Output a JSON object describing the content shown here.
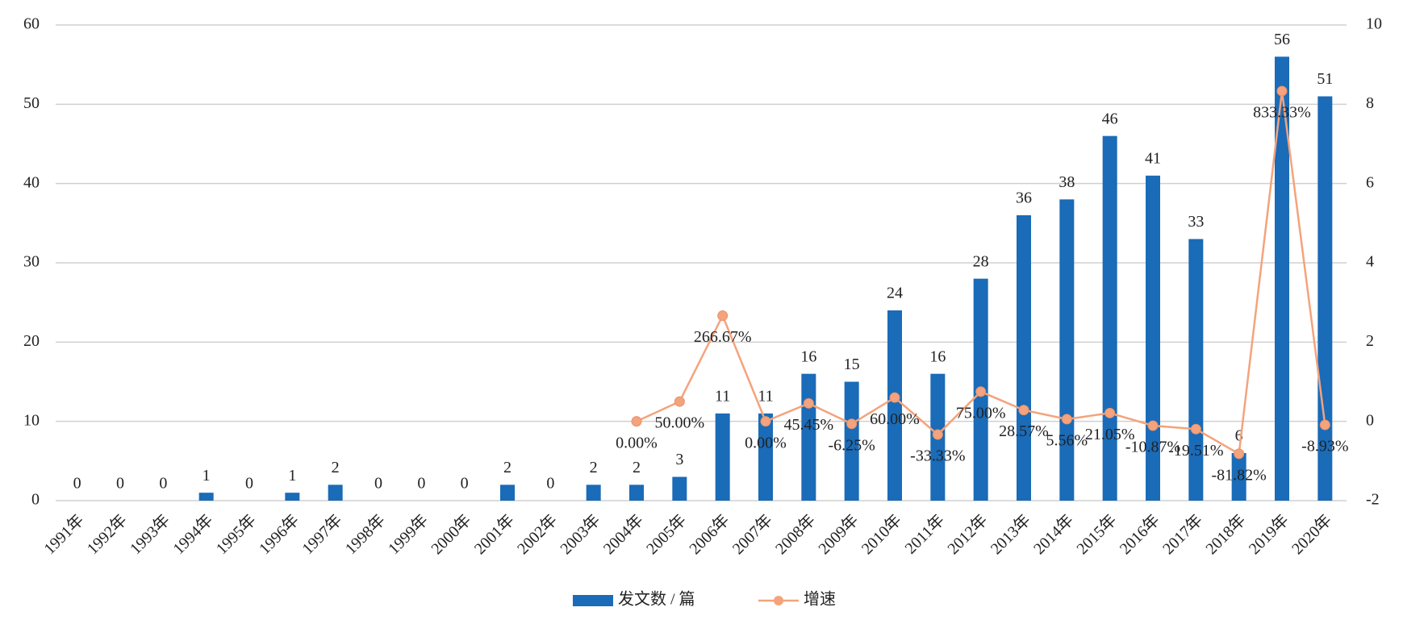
{
  "chart_data": {
    "type": "bar",
    "categories": [
      "1991年",
      "1992年",
      "1993年",
      "1994年",
      "1995年",
      "1996年",
      "1997年",
      "1998年",
      "1999年",
      "2000年",
      "2001年",
      "2002年",
      "2003年",
      "2004年",
      "2005年",
      "2006年",
      "2007年",
      "2008年",
      "2009年",
      "2010年",
      "2011年",
      "2012年",
      "2013年",
      "2014年",
      "2015年",
      "2016年",
      "2017年",
      "2018年",
      "2019年",
      "2020年"
    ],
    "series": [
      {
        "name": "发文数 / 篇",
        "type": "bar",
        "color": "#1a6bb8",
        "values": [
          0,
          0,
          0,
          1,
          0,
          1,
          2,
          0,
          0,
          0,
          2,
          0,
          2,
          2,
          3,
          11,
          11,
          16,
          15,
          24,
          16,
          28,
          36,
          38,
          46,
          41,
          33,
          6,
          56,
          51
        ]
      },
      {
        "name": "增速",
        "type": "line",
        "axis": "y2",
        "color": "#f4a37c",
        "values": [
          null,
          null,
          null,
          null,
          null,
          null,
          null,
          null,
          null,
          null,
          null,
          null,
          null,
          0,
          0.5,
          2.6667,
          0,
          0.4545,
          -0.0625,
          0.6,
          -0.3333,
          0.75,
          0.2857,
          0.0556,
          0.2105,
          -0.1087,
          -0.1951,
          -0.8182,
          8.3333,
          -0.0893
        ],
        "value_labels": [
          null,
          null,
          null,
          null,
          null,
          null,
          null,
          null,
          null,
          null,
          null,
          null,
          null,
          "0.00%",
          "50.00%",
          "266.67%",
          "0.00%",
          "45.45%",
          "-6.25%",
          "60.00%",
          "-33.33%",
          "75.00%",
          "28.57%",
          "5.56%",
          "21.05%",
          "-10.87%",
          "-19.51%",
          "-81.82%",
          "833.33%",
          "-8.93%"
        ]
      }
    ],
    "ylim": [
      0,
      60
    ],
    "yticks": [
      0,
      10,
      20,
      30,
      40,
      50,
      60
    ],
    "y2lim": [
      -2,
      10
    ],
    "y2ticks": [
      -2,
      0,
      2,
      4,
      6,
      8,
      10
    ],
    "grid": true,
    "legend": "bottom"
  }
}
